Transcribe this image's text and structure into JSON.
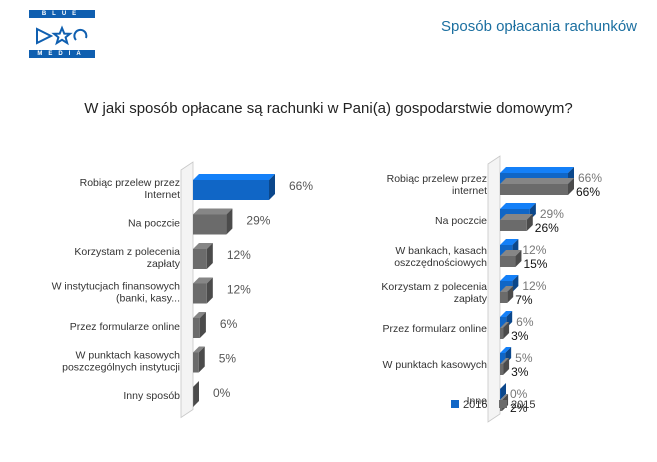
{
  "header": {
    "logo_lines": [
      "BLUE",
      "",
      "MEDIA"
    ],
    "title": "Sposób opłacania rachunków"
  },
  "colors": {
    "blue": "#1066c6",
    "gray": "#6b6b6b",
    "accent_text": "#1b6fa0"
  },
  "chart_data": [
    {
      "type": "bar",
      "title": "W jaki sposób opłacane są rachunki w Pani(a) gospodarstwie domowym?",
      "categories": [
        [
          "Robiąc przelew przez",
          "Internet"
        ],
        [
          "Na poczcie"
        ],
        [
          "Korzystam z polecenia",
          "zapłaty"
        ],
        [
          "W instytucjach finansowych",
          "(banki, kasy..."
        ],
        [
          "Przez formularze online"
        ],
        [
          "W punktach kasowych",
          "poszczególnych instytucji"
        ],
        [
          "Inny sposób"
        ]
      ],
      "series": [
        {
          "values": [
            66,
            29,
            12,
            12,
            6,
            5,
            0
          ],
          "labels": [
            "66%",
            "29%",
            "12%",
            "12%",
            "6%",
            "5%",
            "0%"
          ]
        }
      ]
    },
    {
      "type": "bar",
      "categories": [
        [
          "Robiąc przelew przez",
          "internet"
        ],
        [
          "Na poczcie"
        ],
        [
          "W bankach, kasach",
          "oszczędnościowych"
        ],
        [
          "Korzystam z polecenia",
          "zapłaty"
        ],
        [
          "Przez formularz online"
        ],
        [
          "W punktach kasowych"
        ],
        [
          "Inne"
        ]
      ],
      "series": [
        {
          "name": "2016",
          "values": [
            66,
            29,
            12,
            12,
            6,
            5,
            0
          ],
          "labels": [
            "66%",
            "29%",
            "12%",
            "12%",
            "6%",
            "5%",
            "0%"
          ]
        },
        {
          "name": "2015",
          "values": [
            66,
            26,
            15,
            7,
            3,
            3,
            2
          ],
          "labels": [
            "66%",
            "26%",
            "15%",
            "7%",
            "3%",
            "3%",
            "2%"
          ]
        }
      ],
      "legend": "bottom"
    }
  ]
}
